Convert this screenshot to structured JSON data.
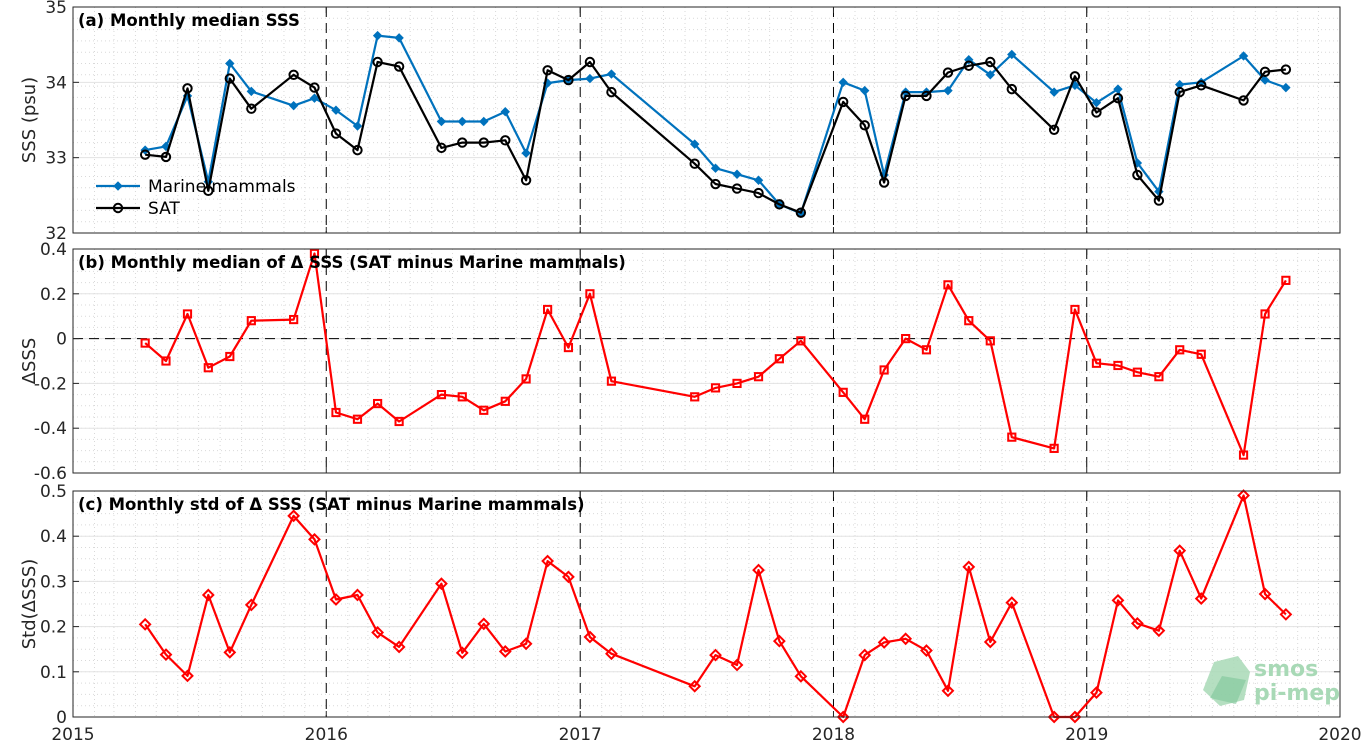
{
  "colors": {
    "marine": "#0072bd",
    "sat": "#000000",
    "delta": "#ff0000",
    "logo": "#a8d9b6"
  },
  "logo": {
    "line1": "smos",
    "line2": "pi-mep",
    "icon": "smos-pi-mep-logo-icon"
  },
  "chart_data": [
    {
      "type": "line",
      "panel": "a",
      "title": "(a) Monthly median SSS",
      "xlabel": "",
      "ylabel": "SSS (psu)",
      "xlim": [
        "2015-01-01",
        "2020-01-01"
      ],
      "ylim": [
        32,
        35
      ],
      "yticks": [
        "32",
        "33",
        "34",
        "35"
      ],
      "grid": true,
      "legend": {
        "position": "bottom-left",
        "entries": [
          "Marine mammals",
          "SAT"
        ]
      },
      "x": [
        "2015-04-15",
        "2015-05-15",
        "2015-06-15",
        "2015-07-15",
        "2015-08-15",
        "2015-09-15",
        "2015-11-15",
        "2015-12-15",
        "2016-01-15",
        "2016-02-15",
        "2016-03-15",
        "2016-04-15",
        "2016-06-15",
        "2016-07-15",
        "2016-08-15",
        "2016-09-15",
        "2016-10-15",
        "2016-11-15",
        "2016-12-15",
        "2017-01-15",
        "2017-02-15",
        "2017-06-15",
        "2017-07-15",
        "2017-08-15",
        "2017-09-15",
        "2017-10-15",
        "2017-11-15",
        "2018-01-15",
        "2018-02-15",
        "2018-03-15",
        "2018-04-15",
        "2018-05-15",
        "2018-06-15",
        "2018-07-15",
        "2018-08-15",
        "2018-09-15",
        "2018-11-15",
        "2018-12-15",
        "2019-01-15",
        "2019-02-15",
        "2019-03-15",
        "2019-04-15",
        "2019-05-15",
        "2019-06-15",
        "2019-08-15",
        "2019-09-15",
        "2019-10-15"
      ],
      "series": [
        {
          "name": "Marine mammals",
          "marker": "diamond",
          "values": [
            33.1,
            33.15,
            33.82,
            32.68,
            34.25,
            33.88,
            33.69,
            33.79,
            33.63,
            33.42,
            34.62,
            34.59,
            33.48,
            33.48,
            33.48,
            33.61,
            33.06,
            33.99,
            34.03,
            34.05,
            34.11,
            33.18,
            32.86,
            32.78,
            32.7,
            32.38,
            32.26,
            34.0,
            33.89,
            32.77,
            33.87,
            33.87,
            33.89,
            34.3,
            34.1,
            34.37,
            33.87,
            33.96,
            33.73,
            33.91,
            32.93,
            32.55,
            33.97,
            34.0,
            34.35,
            34.03,
            33.93
          ]
        },
        {
          "name": "SAT",
          "marker": "circle",
          "values": [
            33.04,
            33.01,
            33.92,
            32.56,
            34.05,
            33.65,
            34.1,
            33.93,
            33.32,
            33.1,
            34.27,
            34.21,
            33.13,
            33.2,
            33.2,
            33.23,
            32.7,
            34.16,
            34.03,
            34.27,
            33.87,
            32.92,
            32.65,
            32.59,
            32.53,
            32.38,
            32.27,
            33.74,
            33.43,
            32.67,
            33.82,
            33.82,
            34.13,
            34.22,
            34.27,
            33.91,
            33.37,
            34.08,
            33.6,
            33.79,
            32.77,
            32.43,
            33.87,
            33.96,
            33.76,
            34.14,
            34.17
          ]
        }
      ]
    },
    {
      "type": "line",
      "panel": "b",
      "title": "(b) Monthly median of Δ SSS (SAT minus Marine mammals)",
      "xlabel": "",
      "ylabel": "ΔSSS",
      "xlim": [
        "2015-01-01",
        "2020-01-01"
      ],
      "ylim": [
        -0.6,
        0.4
      ],
      "yticks": [
        "-0.6",
        "-0.4",
        "-0.2",
        "0",
        "0.2",
        "0.4"
      ],
      "grid": true,
      "x": [
        "2015-04-15",
        "2015-05-15",
        "2015-06-15",
        "2015-07-15",
        "2015-08-15",
        "2015-09-15",
        "2015-11-15",
        "2015-12-15",
        "2016-01-15",
        "2016-02-15",
        "2016-03-15",
        "2016-04-15",
        "2016-06-15",
        "2016-07-15",
        "2016-08-15",
        "2016-09-15",
        "2016-10-15",
        "2016-11-15",
        "2016-12-15",
        "2017-01-15",
        "2017-02-15",
        "2017-06-15",
        "2017-07-15",
        "2017-08-15",
        "2017-09-15",
        "2017-10-15",
        "2017-11-15",
        "2018-01-15",
        "2018-02-15",
        "2018-03-15",
        "2018-04-15",
        "2018-05-15",
        "2018-06-15",
        "2018-07-15",
        "2018-08-15",
        "2018-09-15",
        "2018-11-15",
        "2018-12-15",
        "2019-01-15",
        "2019-02-15",
        "2019-03-15",
        "2019-04-15",
        "2019-05-15",
        "2019-06-15",
        "2019-08-15",
        "2019-09-15",
        "2019-10-15"
      ],
      "series": [
        {
          "name": "",
          "marker": "square",
          "values": [
            -0.02,
            -0.1,
            0.11,
            -0.13,
            -0.08,
            0.08,
            0.085,
            0.38,
            -0.33,
            -0.36,
            -0.29,
            -0.37,
            -0.25,
            -0.26,
            -0.32,
            -0.28,
            -0.18,
            0.13,
            -0.04,
            0.2,
            -0.19,
            -0.26,
            -0.22,
            -0.2,
            -0.17,
            -0.09,
            -0.01,
            -0.24,
            -0.36,
            -0.14,
            0.0,
            -0.05,
            0.24,
            0.08,
            -0.01,
            -0.44,
            -0.49,
            0.13,
            -0.11,
            -0.12,
            -0.15,
            -0.17,
            -0.05,
            -0.07,
            -0.52,
            0.11,
            0.26
          ]
        }
      ]
    },
    {
      "type": "line",
      "panel": "c",
      "title": "(c) Monthly std of Δ SSS (SAT minus Marine mammals)",
      "xlabel": "",
      "ylabel": "Std(ΔSSS)",
      "xlim": [
        "2015-01-01",
        "2020-01-01"
      ],
      "ylim": [
        0,
        0.5
      ],
      "yticks": [
        "0",
        "0.1",
        "0.2",
        "0.3",
        "0.4",
        "0.5"
      ],
      "xticks": [
        "2015",
        "2016",
        "2017",
        "2018",
        "2019",
        "2020"
      ],
      "grid": true,
      "x": [
        "2015-04-15",
        "2015-05-15",
        "2015-06-15",
        "2015-07-15",
        "2015-08-15",
        "2015-09-15",
        "2015-11-15",
        "2015-12-15",
        "2016-01-15",
        "2016-02-15",
        "2016-03-15",
        "2016-04-15",
        "2016-06-15",
        "2016-07-15",
        "2016-08-15",
        "2016-09-15",
        "2016-10-15",
        "2016-11-15",
        "2016-12-15",
        "2017-01-15",
        "2017-02-15",
        "2017-06-15",
        "2017-07-15",
        "2017-08-15",
        "2017-09-15",
        "2017-10-15",
        "2017-11-15",
        "2018-01-15",
        "2018-02-15",
        "2018-03-15",
        "2018-04-15",
        "2018-05-15",
        "2018-06-15",
        "2018-07-15",
        "2018-08-15",
        "2018-09-15",
        "2018-11-15",
        "2018-12-15",
        "2019-01-15",
        "2019-02-15",
        "2019-03-15",
        "2019-04-15",
        "2019-05-15",
        "2019-06-15",
        "2019-08-15",
        "2019-09-15",
        "2019-10-15"
      ],
      "series": [
        {
          "name": "",
          "marker": "diamond-open",
          "values": [
            0.205,
            0.138,
            0.091,
            0.27,
            0.143,
            0.248,
            0.445,
            0.393,
            0.26,
            0.27,
            0.187,
            0.155,
            0.295,
            0.142,
            0.206,
            0.145,
            0.162,
            0.345,
            0.31,
            0.177,
            0.14,
            0.068,
            0.137,
            0.115,
            0.325,
            0.168,
            0.09,
            0.0,
            0.137,
            0.165,
            0.173,
            0.147,
            0.058,
            0.332,
            0.166,
            0.253,
            0.0,
            0.0,
            0.054,
            0.258,
            0.207,
            0.191,
            0.368,
            0.262,
            0.49,
            0.272,
            0.227
          ]
        }
      ]
    }
  ]
}
